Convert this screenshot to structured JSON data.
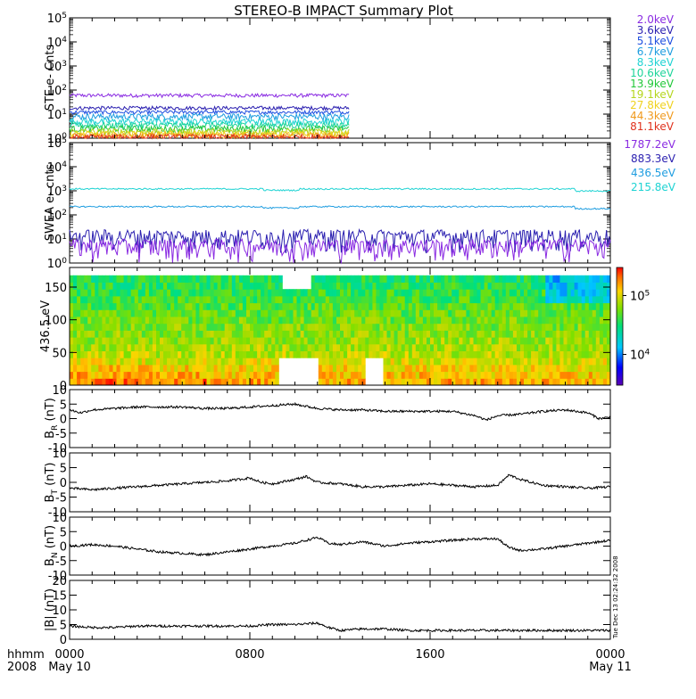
{
  "title": "STEREO-B IMPACT Summary Plot",
  "time_axis": {
    "row1_label": "hhmm",
    "row2_label": "2008",
    "ticks": [
      {
        "hour": 0,
        "label": "0000",
        "date": "May 10"
      },
      {
        "hour": 8,
        "label": "0800",
        "date": ""
      },
      {
        "hour": 16,
        "label": "1600",
        "date": ""
      },
      {
        "hour": 24,
        "label": "0000",
        "date": "May 11"
      }
    ]
  },
  "stamp": "Tue Dec 13 02:24:32 2008",
  "legend_ste": [
    {
      "label": "2.0keV",
      "color": "#8a2be2"
    },
    {
      "label": "3.6keV",
      "color": "#2a1fb0"
    },
    {
      "label": "5.1keV",
      "color": "#1f4fe0"
    },
    {
      "label": "6.7keV",
      "color": "#1e9de0"
    },
    {
      "label": "8.3keV",
      "color": "#1fd3d3"
    },
    {
      "label": "10.6keV",
      "color": "#1fd59a"
    },
    {
      "label": "13.9keV",
      "color": "#22c83a"
    },
    {
      "label": "19.1keV",
      "color": "#b5d61e"
    },
    {
      "label": "27.8keV",
      "color": "#f0d21e"
    },
    {
      "label": "44.3keV",
      "color": "#f09a1e"
    },
    {
      "label": "81.1keV",
      "color": "#e0321e"
    }
  ],
  "legend_swea": [
    {
      "label": "1787.2eV",
      "color": "#8a2be2"
    },
    {
      "label": "883.3eV",
      "color": "#2a1fb0"
    },
    {
      "label": "436.5eV",
      "color": "#1e9de0"
    },
    {
      "label": "215.8eV",
      "color": "#1fd3d3"
    }
  ],
  "panels": {
    "ste": {
      "ylabel": "STE e- Cnts",
      "yticks": [
        "10^0",
        "10^1",
        "10^2",
        "10^3",
        "10^4",
        "10^5"
      ]
    },
    "swea": {
      "ylabel": "SWEA e- cnts",
      "yticks": [
        "10^0",
        "10^1",
        "10^2",
        "10^3",
        "10^4",
        "10^5"
      ]
    },
    "pad": {
      "ylabel": "436.5 eV",
      "yticks": [
        "0",
        "50",
        "100",
        "150"
      ],
      "colorbar_ticks": [
        "10^4",
        "10^5"
      ]
    },
    "br": {
      "ylabel": "B_R (nT)",
      "yticks": [
        "-10",
        "-5",
        "0",
        "5",
        "10"
      ]
    },
    "bt": {
      "ylabel": "B_T (nT)",
      "yticks": [
        "-10",
        "-5",
        "0",
        "5",
        "10"
      ]
    },
    "bn": {
      "ylabel": "B_N (nT)",
      "yticks": [
        "-10",
        "-5",
        "0",
        "5",
        "10"
      ]
    },
    "bmag": {
      "ylabel": "|B| (nT)",
      "yticks": [
        "0",
        "5",
        "10",
        "15",
        "20"
      ]
    }
  },
  "chart_data": [
    {
      "type": "line",
      "title": "STEREO-B IMPACT Summary Plot",
      "panel": "STE electron counts",
      "ylabel": "STE e- Cnts",
      "yscale": "log",
      "ylim": [
        1,
        100000
      ],
      "xlim_hours": [
        0,
        24
      ],
      "data_coverage_hours": [
        0,
        12.4
      ],
      "series": [
        {
          "name": "2.0keV",
          "level": 60
        },
        {
          "name": "3.6keV",
          "level": 18
        },
        {
          "name": "5.1keV",
          "level": 12
        },
        {
          "name": "6.7keV",
          "level": 8
        },
        {
          "name": "8.3keV",
          "level": 5
        },
        {
          "name": "10.6keV",
          "level": 3.5
        },
        {
          "name": "13.9keV",
          "level": 2.5
        },
        {
          "name": "19.1keV",
          "level": 1.9
        },
        {
          "name": "27.8keV",
          "level": 1.5
        },
        {
          "name": "44.3keV",
          "level": 1.25
        },
        {
          "name": "81.1keV",
          "level": 1.1
        }
      ]
    },
    {
      "type": "line",
      "panel": "SWEA electron counts",
      "ylabel": "SWEA e- cnts",
      "yscale": "log",
      "ylim": [
        1,
        100000
      ],
      "xlim_hours": [
        0,
        24
      ],
      "series": [
        {
          "name": "215.8eV",
          "level": 1200
        },
        {
          "name": "436.5eV",
          "level": 220
        },
        {
          "name": "883.3eV",
          "level": 10
        },
        {
          "name": "1787.2eV",
          "level": 4
        }
      ]
    },
    {
      "type": "heatmap",
      "panel": "436.5 eV pitch angle distribution",
      "ylabel": "436.5 eV",
      "ylim": [
        0,
        180
      ],
      "colorbar": {
        "scale": "log",
        "range": [
          3000,
          300000
        ],
        "ticks": [
          "10^4",
          "10^5"
        ]
      }
    },
    {
      "type": "line",
      "ylabel": "B_R (nT)",
      "ylim": [
        -10,
        10
      ],
      "x": [
        0,
        0.5,
        1,
        2,
        3,
        4,
        5,
        6,
        7,
        8,
        9,
        10,
        11,
        12,
        13,
        14,
        15,
        16,
        17,
        18,
        18.5,
        19,
        20,
        21,
        22,
        23,
        23.5,
        24
      ],
      "values": [
        3,
        2,
        3,
        3.5,
        4,
        4,
        4,
        3.5,
        3.5,
        4,
        4.5,
        5,
        3.5,
        3,
        3,
        2.5,
        2.5,
        2.5,
        2.5,
        1,
        -0.5,
        1,
        1.5,
        2.5,
        3,
        2,
        0,
        0.5
      ]
    },
    {
      "type": "line",
      "ylabel": "B_T (nT)",
      "ylim": [
        -10,
        10
      ],
      "x": [
        0,
        1,
        2,
        3,
        4,
        5,
        6,
        7,
        8,
        8.5,
        9,
        10,
        10.5,
        11,
        12,
        13,
        14,
        15,
        16,
        17,
        18,
        19,
        19.5,
        20,
        21,
        22,
        23,
        24
      ],
      "values": [
        -2,
        -2.5,
        -2,
        -1.5,
        -1,
        -0.5,
        0,
        0.5,
        1.5,
        0,
        -0.5,
        1,
        2,
        0,
        -0.5,
        -1.5,
        -1.5,
        -1,
        -0.5,
        -1,
        -1.5,
        -1,
        2.5,
        1,
        -1,
        -1.5,
        -2,
        -1.5
      ]
    },
    {
      "type": "line",
      "ylabel": "B_N (nT)",
      "ylim": [
        -10,
        10
      ],
      "x": [
        0,
        1,
        2,
        3,
        4,
        5,
        6,
        7,
        8,
        9,
        10,
        11,
        11.5,
        12,
        13,
        14,
        15,
        16,
        17,
        18,
        19,
        19.5,
        20,
        21,
        22,
        23,
        24
      ],
      "values": [
        0,
        0.5,
        0,
        -1,
        -2,
        -2.5,
        -3,
        -2,
        -1,
        0,
        1,
        3,
        1,
        0.5,
        1.5,
        0,
        1,
        1.5,
        2,
        2.5,
        2.5,
        -0.5,
        -1.5,
        -1,
        0,
        1,
        2
      ]
    },
    {
      "type": "line",
      "ylabel": "|B| (nT)",
      "ylim": [
        0,
        20
      ],
      "x": [
        0,
        1,
        2,
        3,
        4,
        5,
        6,
        7,
        8,
        9,
        10,
        11,
        11.5,
        12,
        13,
        14,
        15,
        16,
        17,
        18,
        19,
        20,
        21,
        22,
        23,
        24
      ],
      "values": [
        4.5,
        4,
        4,
        4.5,
        4.5,
        4.5,
        4.5,
        4.5,
        4.5,
        5,
        5,
        5.5,
        4,
        3,
        3.5,
        3.5,
        3,
        3,
        3,
        3,
        3,
        3,
        3,
        3,
        3,
        3
      ]
    }
  ]
}
